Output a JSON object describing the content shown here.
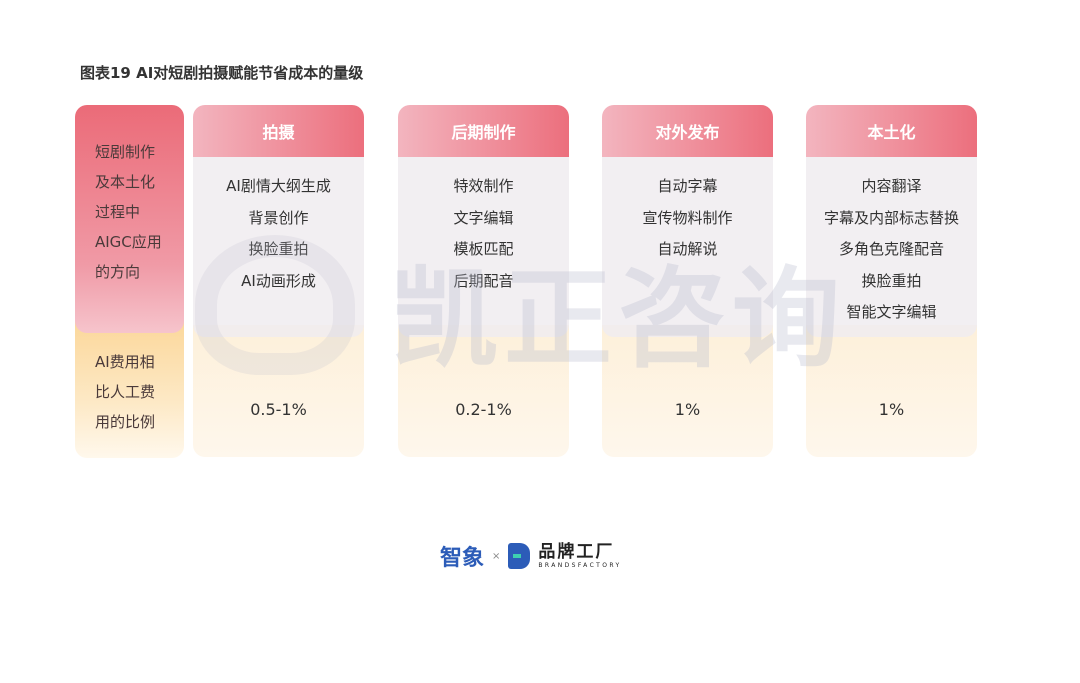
{
  "title": "图表19 AI对短剧拍摄赋能节省成本的量级",
  "watermark": "凯正咨询",
  "row_labels": {
    "application": [
      "短剧制作",
      "及本土化",
      "过程中",
      "AIGC应用",
      "的方向"
    ],
    "cost": [
      "AI费用相",
      "比人工费",
      "用的比例"
    ]
  },
  "columns": [
    {
      "header": "拍摄",
      "items": [
        "AI剧情大纲生成",
        "背景创作",
        "换脸重拍",
        "AI动画形成"
      ],
      "cost": "0.5-1%"
    },
    {
      "header": "后期制作",
      "items": [
        "特效制作",
        "文字编辑",
        "模板匹配",
        "后期配音"
      ],
      "cost": "0.2-1%"
    },
    {
      "header": "对外发布",
      "items": [
        "自动字幕",
        "宣传物料制作",
        "自动解说"
      ],
      "cost": "1%"
    },
    {
      "header": "本土化",
      "items": [
        "内容翻译",
        "字幕及内部标志替换",
        "多角色克隆配音",
        "换脸重拍",
        "智能文字编辑"
      ],
      "cost": "1%"
    }
  ],
  "footer": {
    "logo1": "智象",
    "separator": "×",
    "logo2_cn": "品牌工厂",
    "logo2_en": "BRANDSFACTORY"
  },
  "colors": {
    "header_pink": "#ec6f7d",
    "cost_yellow": "#fbd79a"
  }
}
